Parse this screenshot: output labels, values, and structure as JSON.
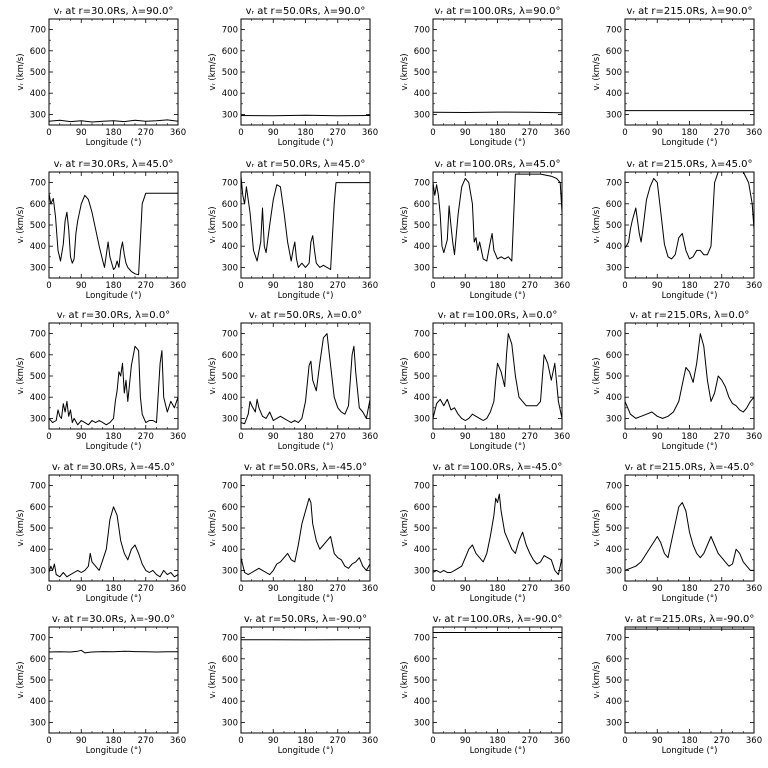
{
  "figure": {
    "x_ticks": [
      "0",
      "90",
      "180",
      "270",
      "360"
    ],
    "y_ticks": [
      "300",
      "400",
      "500",
      "600",
      "700"
    ],
    "xlabel": "Longitude (°)",
    "ylabel": "vᵣ (km/s)"
  },
  "chart_data": [
    {
      "type": "line",
      "title": "vᵣ at r=30.0Rs, λ=90.0°",
      "xlabel": "Longitude (°)",
      "ylabel": "vᵣ (km/s)",
      "xlim": [
        0,
        360
      ],
      "ylim": [
        250,
        750
      ],
      "x": [
        0,
        30,
        60,
        90,
        120,
        150,
        180,
        210,
        240,
        270,
        300,
        330,
        360
      ],
      "values": [
        268,
        272,
        266,
        270,
        264,
        268,
        270,
        266,
        272,
        268,
        270,
        274,
        268
      ]
    },
    {
      "type": "line",
      "title": "vᵣ at r=50.0Rs, λ=90.0°",
      "xlabel": "Longitude (°)",
      "ylabel": "vᵣ (km/s)",
      "xlim": [
        0,
        360
      ],
      "ylim": [
        250,
        750
      ],
      "x": [
        0,
        90,
        180,
        270,
        360
      ],
      "values": [
        295,
        294,
        296,
        294,
        295
      ]
    },
    {
      "type": "line",
      "title": "vᵣ at r=100.0Rs, λ=90.0°",
      "xlabel": "Longitude (°)",
      "ylabel": "vᵣ (km/s)",
      "xlim": [
        0,
        360
      ],
      "ylim": [
        250,
        750
      ],
      "x": [
        0,
        90,
        180,
        270,
        360
      ],
      "values": [
        310,
        309,
        311,
        310,
        308
      ]
    },
    {
      "type": "line",
      "title": "vᵣ at r=215.0Rs, λ=90.0°",
      "xlabel": "Longitude (°)",
      "ylabel": "vᵣ (km/s)",
      "xlim": [
        0,
        360
      ],
      "ylim": [
        250,
        750
      ],
      "x": [
        0,
        360
      ],
      "values": [
        318,
        318
      ]
    },
    {
      "type": "line",
      "title": "vᵣ at r=30.0Rs, λ=45.0°",
      "xlabel": "Longitude (°)",
      "ylabel": "vᵣ (km/s)",
      "xlim": [
        0,
        360
      ],
      "ylim": [
        250,
        750
      ],
      "x": [
        0,
        5,
        12,
        18,
        25,
        32,
        40,
        45,
        50,
        55,
        60,
        65,
        70,
        75,
        80,
        90,
        100,
        110,
        120,
        130,
        140,
        150,
        155,
        160,
        165,
        170,
        180,
        185,
        190,
        195,
        200,
        205,
        210,
        215,
        220,
        225,
        230,
        240,
        250,
        260,
        270,
        300,
        330,
        360
      ],
      "values": [
        650,
        600,
        625,
        540,
        380,
        330,
        410,
        520,
        560,
        480,
        350,
        320,
        340,
        460,
        520,
        600,
        640,
        620,
        560,
        480,
        400,
        330,
        300,
        360,
        420,
        350,
        290,
        300,
        330,
        300,
        380,
        420,
        360,
        320,
        300,
        290,
        280,
        270,
        265,
        600,
        650,
        650,
        650,
        650
      ]
    },
    {
      "type": "line",
      "title": "vᵣ at r=50.0Rs, λ=45.0°",
      "xlabel": "Longitude (°)",
      "ylabel": "vᵣ (km/s)",
      "xlim": [
        0,
        360
      ],
      "ylim": [
        250,
        750
      ],
      "x": [
        0,
        5,
        10,
        15,
        25,
        35,
        45,
        55,
        60,
        65,
        70,
        80,
        90,
        100,
        110,
        120,
        130,
        140,
        145,
        150,
        155,
        160,
        170,
        180,
        190,
        195,
        200,
        205,
        210,
        220,
        230,
        240,
        250,
        260,
        265,
        270,
        300,
        330,
        360
      ],
      "values": [
        730,
        640,
        600,
        680,
        560,
        380,
        330,
        420,
        580,
        400,
        370,
        500,
        620,
        690,
        680,
        560,
        420,
        330,
        380,
        420,
        340,
        300,
        320,
        300,
        320,
        420,
        450,
        380,
        320,
        300,
        310,
        300,
        290,
        600,
        700,
        700,
        700,
        700,
        700
      ]
    },
    {
      "type": "line",
      "title": "vᵣ at r=100.0Rs, λ=45.0°",
      "xlabel": "Longitude (°)",
      "ylabel": "vᵣ (km/s)",
      "xlim": [
        0,
        360
      ],
      "ylim": [
        250,
        750
      ],
      "x": [
        0,
        5,
        10,
        15,
        20,
        25,
        30,
        40,
        45,
        50,
        55,
        60,
        70,
        80,
        90,
        100,
        110,
        115,
        120,
        125,
        130,
        140,
        150,
        160,
        165,
        170,
        180,
        190,
        200,
        210,
        220,
        230,
        250,
        270,
        300,
        330,
        345,
        355,
        360
      ],
      "values": [
        700,
        640,
        690,
        640,
        550,
        400,
        370,
        430,
        590,
        500,
        420,
        360,
        550,
        680,
        720,
        700,
        600,
        420,
        440,
        380,
        420,
        340,
        330,
        420,
        460,
        380,
        340,
        350,
        340,
        350,
        330,
        740,
        740,
        740,
        740,
        730,
        720,
        700,
        560
      ]
    },
    {
      "type": "line",
      "title": "vᵣ at r=215.0Rs, λ=45.0°",
      "xlabel": "Longitude (°)",
      "ylabel": "vᵣ (km/s)",
      "xlim": [
        0,
        360
      ],
      "ylim": [
        250,
        750
      ],
      "x": [
        0,
        10,
        15,
        20,
        30,
        40,
        45,
        50,
        60,
        70,
        80,
        90,
        100,
        110,
        120,
        130,
        140,
        150,
        160,
        170,
        180,
        190,
        200,
        210,
        220,
        230,
        240,
        250,
        260,
        270,
        300,
        330,
        345,
        355,
        360
      ],
      "values": [
        390,
        420,
        480,
        520,
        580,
        460,
        420,
        480,
        620,
        680,
        720,
        700,
        560,
        410,
        350,
        340,
        360,
        440,
        460,
        380,
        340,
        350,
        380,
        380,
        360,
        360,
        400,
        700,
        750,
        750,
        750,
        750,
        700,
        600,
        480
      ]
    },
    {
      "type": "line",
      "title": "vᵣ at r=30.0Rs, λ=0.0°",
      "xlabel": "Longitude (°)",
      "ylabel": "vᵣ (km/s)",
      "xlim": [
        0,
        360
      ],
      "ylim": [
        250,
        750
      ],
      "x": [
        0,
        10,
        20,
        25,
        30,
        35,
        40,
        45,
        50,
        55,
        60,
        65,
        70,
        80,
        90,
        100,
        110,
        120,
        130,
        140,
        150,
        160,
        170,
        180,
        185,
        190,
        195,
        200,
        205,
        210,
        215,
        220,
        230,
        240,
        250,
        255,
        260,
        270,
        280,
        290,
        300,
        310,
        315,
        320,
        330,
        340,
        350,
        360
      ],
      "values": [
        300,
        280,
        290,
        340,
        310,
        300,
        370,
        330,
        380,
        310,
        340,
        280,
        300,
        270,
        290,
        280,
        270,
        290,
        280,
        290,
        280,
        270,
        280,
        300,
        380,
        430,
        520,
        500,
        560,
        420,
        480,
        380,
        550,
        640,
        620,
        400,
        320,
        280,
        290,
        290,
        280,
        560,
        620,
        400,
        330,
        380,
        350,
        400
      ]
    },
    {
      "type": "line",
      "title": "vᵣ at r=50.0Rs, λ=0.0°",
      "xlabel": "Longitude (°)",
      "ylabel": "vᵣ (km/s)",
      "xlim": [
        0,
        360
      ],
      "ylim": [
        250,
        750
      ],
      "x": [
        0,
        10,
        20,
        25,
        30,
        40,
        45,
        50,
        60,
        70,
        80,
        90,
        100,
        110,
        120,
        130,
        140,
        150,
        160,
        170,
        180,
        190,
        195,
        200,
        210,
        220,
        230,
        240,
        250,
        260,
        270,
        280,
        290,
        300,
        310,
        315,
        320,
        330,
        340,
        350,
        360
      ],
      "values": [
        280,
        275,
        320,
        380,
        360,
        330,
        390,
        350,
        310,
        300,
        330,
        290,
        300,
        310,
        300,
        290,
        280,
        290,
        280,
        300,
        380,
        550,
        570,
        480,
        430,
        560,
        680,
        700,
        550,
        400,
        350,
        330,
        320,
        360,
        600,
        640,
        520,
        350,
        330,
        300,
        390
      ]
    },
    {
      "type": "line",
      "title": "vᵣ at r=100.0Rs, λ=0.0°",
      "xlabel": "Longitude (°)",
      "ylabel": "vᵣ (km/s)",
      "xlim": [
        0,
        360
      ],
      "ylim": [
        250,
        750
      ],
      "x": [
        0,
        10,
        20,
        30,
        40,
        50,
        60,
        70,
        80,
        90,
        100,
        110,
        120,
        130,
        140,
        150,
        160,
        170,
        175,
        180,
        190,
        200,
        205,
        210,
        220,
        230,
        240,
        250,
        260,
        270,
        280,
        290,
        300,
        310,
        320,
        330,
        340,
        350,
        360
      ],
      "values": [
        300,
        370,
        390,
        360,
        390,
        340,
        350,
        320,
        300,
        290,
        300,
        320,
        310,
        300,
        290,
        300,
        330,
        380,
        480,
        560,
        520,
        450,
        600,
        700,
        650,
        500,
        400,
        380,
        360,
        360,
        360,
        360,
        380,
        600,
        560,
        480,
        560,
        380,
        300
      ]
    },
    {
      "type": "line",
      "title": "vᵣ at r=215.0Rs, λ=0.0°",
      "xlabel": "Longitude (°)",
      "ylabel": "vᵣ (km/s)",
      "xlim": [
        0,
        360
      ],
      "ylim": [
        250,
        750
      ],
      "x": [
        0,
        15,
        30,
        45,
        60,
        75,
        90,
        105,
        120,
        135,
        150,
        160,
        170,
        180,
        190,
        200,
        210,
        220,
        230,
        240,
        250,
        260,
        270,
        280,
        290,
        300,
        310,
        320,
        330,
        340,
        350,
        360
      ],
      "values": [
        380,
        320,
        300,
        310,
        320,
        330,
        310,
        300,
        310,
        330,
        380,
        460,
        540,
        520,
        470,
        560,
        700,
        640,
        480,
        380,
        420,
        500,
        480,
        450,
        400,
        370,
        360,
        340,
        330,
        350,
        380,
        400
      ]
    },
    {
      "type": "line",
      "title": "vᵣ at r=30.0Rs, λ=-45.0°",
      "xlabel": "Longitude (°)",
      "ylabel": "vᵣ (km/s)",
      "xlim": [
        0,
        360
      ],
      "ylim": [
        250,
        750
      ],
      "x": [
        0,
        5,
        10,
        15,
        20,
        30,
        40,
        50,
        60,
        70,
        80,
        90,
        100,
        110,
        115,
        120,
        130,
        140,
        150,
        160,
        165,
        170,
        180,
        190,
        200,
        210,
        220,
        230,
        240,
        250,
        260,
        270,
        280,
        290,
        300,
        310,
        320,
        330,
        340,
        350,
        360
      ],
      "values": [
        290,
        320,
        300,
        330,
        280,
        270,
        290,
        270,
        280,
        290,
        300,
        290,
        300,
        320,
        380,
        340,
        320,
        300,
        350,
        400,
        470,
        540,
        600,
        560,
        440,
        380,
        350,
        400,
        420,
        380,
        330,
        300,
        290,
        300,
        280,
        270,
        300,
        280,
        290,
        270,
        280
      ]
    },
    {
      "type": "line",
      "title": "vᵣ at r=50.0Rs, λ=-45.0°",
      "xlabel": "Longitude (°)",
      "ylabel": "vᵣ (km/s)",
      "xlim": [
        0,
        360
      ],
      "ylim": [
        250,
        750
      ],
      "x": [
        0,
        10,
        20,
        30,
        40,
        50,
        60,
        70,
        80,
        90,
        100,
        110,
        120,
        130,
        140,
        150,
        160,
        170,
        180,
        190,
        195,
        200,
        210,
        220,
        230,
        240,
        250,
        260,
        270,
        280,
        290,
        300,
        310,
        320,
        330,
        340,
        350,
        360
      ],
      "values": [
        360,
        290,
        280,
        290,
        300,
        310,
        300,
        290,
        280,
        300,
        330,
        340,
        360,
        380,
        350,
        340,
        420,
        520,
        580,
        640,
        620,
        520,
        440,
        400,
        420,
        440,
        460,
        380,
        360,
        350,
        320,
        310,
        330,
        340,
        360,
        320,
        300,
        330
      ]
    },
    {
      "type": "line",
      "title": "vᵣ at r=100.0Rs, λ=-45.0°",
      "xlabel": "Longitude (°)",
      "ylabel": "vᵣ (km/s)",
      "xlim": [
        0,
        360
      ],
      "ylim": [
        250,
        750
      ],
      "x": [
        0,
        10,
        20,
        30,
        40,
        50,
        60,
        70,
        80,
        90,
        100,
        110,
        120,
        130,
        140,
        150,
        160,
        170,
        175,
        180,
        185,
        190,
        200,
        210,
        220,
        230,
        240,
        250,
        260,
        270,
        280,
        290,
        300,
        310,
        320,
        330,
        340,
        350,
        360
      ],
      "values": [
        290,
        300,
        290,
        300,
        290,
        290,
        300,
        310,
        320,
        360,
        400,
        420,
        380,
        360,
        340,
        380,
        460,
        560,
        640,
        620,
        660,
        580,
        480,
        440,
        400,
        380,
        440,
        480,
        420,
        380,
        350,
        330,
        340,
        370,
        360,
        350,
        300,
        280,
        360
      ]
    },
    {
      "type": "line",
      "title": "vᵣ at r=215.0Rs, λ=-45.0°",
      "xlabel": "Longitude (°)",
      "ylabel": "vᵣ (km/s)",
      "xlim": [
        0,
        360
      ],
      "ylim": [
        250,
        750
      ],
      "x": [
        0,
        15,
        30,
        45,
        60,
        75,
        90,
        100,
        110,
        120,
        130,
        140,
        150,
        160,
        170,
        180,
        190,
        200,
        210,
        220,
        230,
        240,
        250,
        260,
        270,
        280,
        290,
        300,
        310,
        320,
        330,
        340,
        350,
        360
      ],
      "values": [
        300,
        310,
        320,
        340,
        380,
        420,
        460,
        430,
        380,
        360,
        440,
        520,
        600,
        620,
        580,
        480,
        420,
        380,
        360,
        380,
        420,
        460,
        420,
        380,
        360,
        340,
        320,
        330,
        400,
        380,
        340,
        320,
        300,
        300
      ]
    },
    {
      "type": "line",
      "title": "vᵣ at r=30.0Rs, λ=-90.0°",
      "xlabel": "Longitude (°)",
      "ylabel": "vᵣ (km/s)",
      "xlim": [
        0,
        360
      ],
      "ylim": [
        250,
        750
      ],
      "x": [
        0,
        30,
        60,
        80,
        90,
        100,
        110,
        120,
        150,
        180,
        210,
        240,
        270,
        300,
        330,
        360
      ],
      "values": [
        632,
        633,
        632,
        636,
        640,
        628,
        630,
        632,
        634,
        633,
        636,
        634,
        633,
        632,
        633,
        633
      ]
    },
    {
      "type": "line",
      "title": "vᵣ at r=50.0Rs, λ=-90.0°",
      "xlabel": "Longitude (°)",
      "ylabel": "vᵣ (km/s)",
      "xlim": [
        0,
        360
      ],
      "ylim": [
        250,
        750
      ],
      "x": [
        0,
        90,
        180,
        270,
        360
      ],
      "values": [
        690,
        690,
        689,
        690,
        690
      ]
    },
    {
      "type": "line",
      "title": "vᵣ at r=100.0Rs, λ=-90.0°",
      "xlabel": "Longitude (°)",
      "ylabel": "vᵣ (km/s)",
      "xlim": [
        0,
        360
      ],
      "ylim": [
        250,
        750
      ],
      "x": [
        0,
        90,
        180,
        270,
        360
      ],
      "values": [
        724,
        724,
        724,
        724,
        724
      ]
    },
    {
      "type": "line",
      "title": "vᵣ at r=215.0Rs, λ=-90.0°",
      "xlabel": "Longitude (°)",
      "ylabel": "vᵣ (km/s)",
      "xlim": [
        0,
        360
      ],
      "ylim": [
        250,
        750
      ],
      "x": [
        0,
        360
      ],
      "values": [
        740,
        740
      ]
    }
  ]
}
